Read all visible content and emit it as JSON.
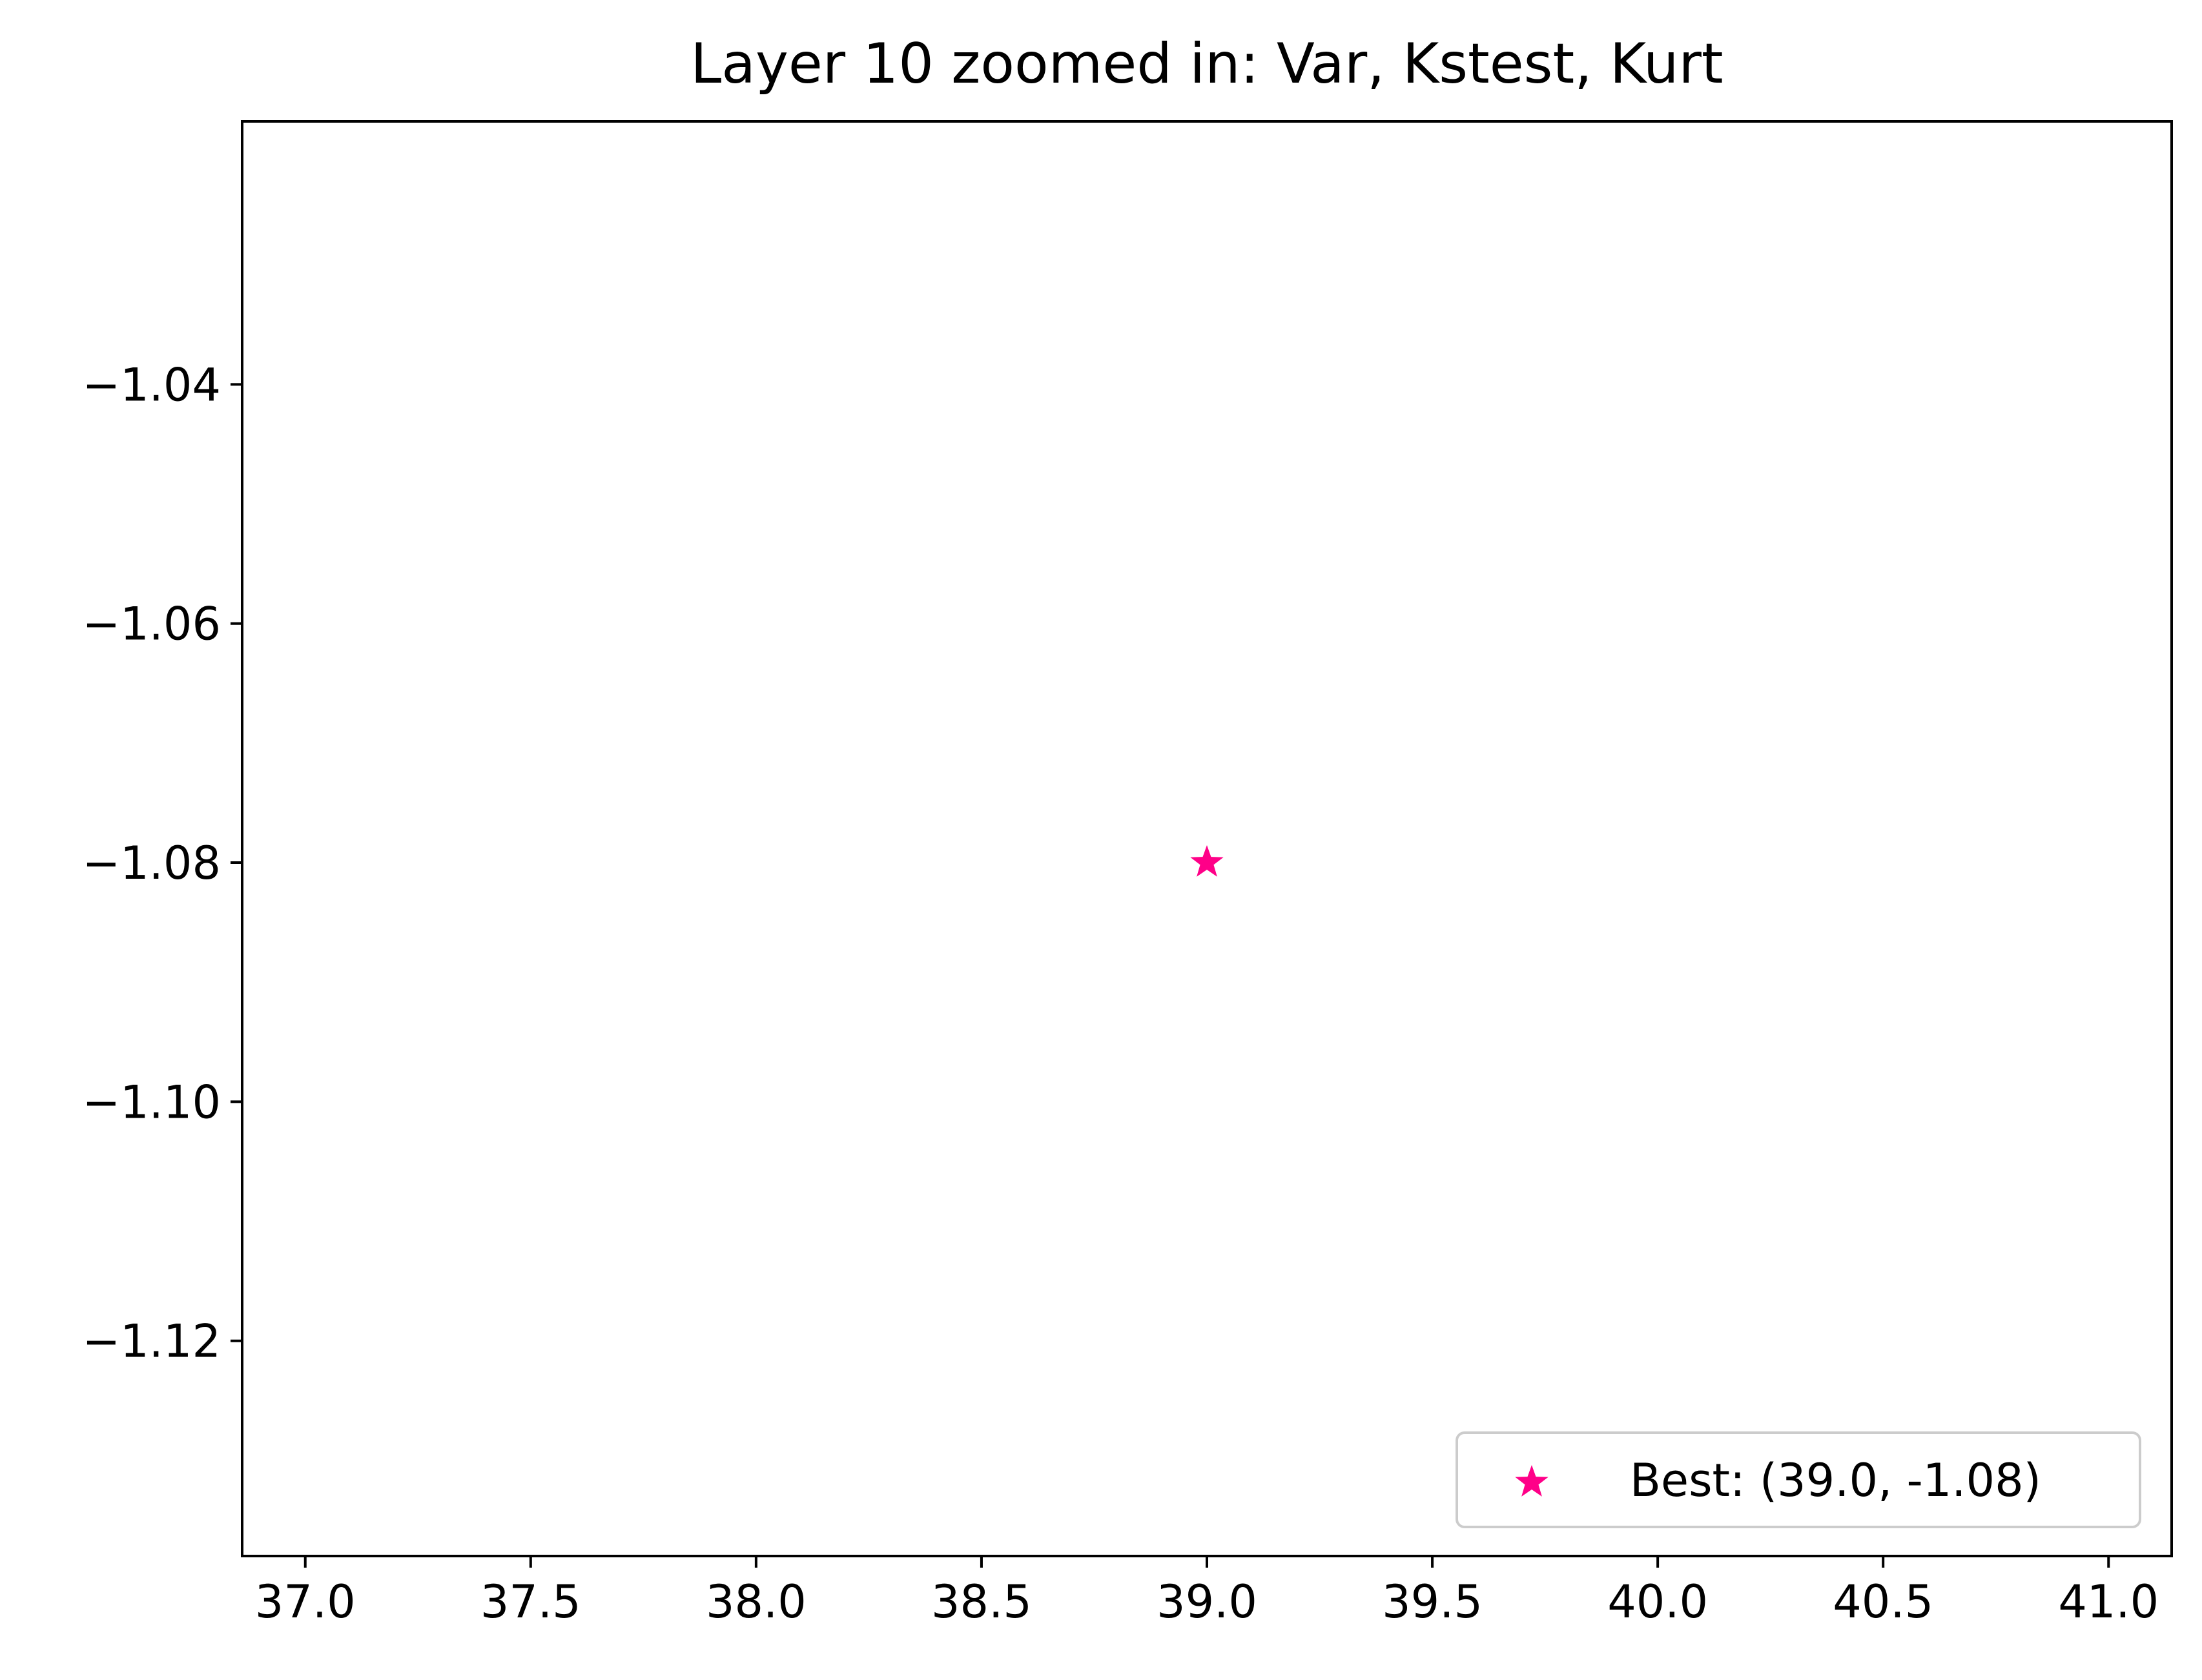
{
  "chart_data": {
    "type": "scatter",
    "title": "Layer 10 zoomed in: Var, Kstest, Kurt",
    "xlabel": "",
    "ylabel": "",
    "xlim": [
      36.86,
      41.14
    ],
    "ylim": [
      -1.138,
      -1.018
    ],
    "x_ticks": [
      "37.0",
      "37.5",
      "38.0",
      "38.5",
      "39.0",
      "39.5",
      "40.0",
      "40.5",
      "41.0"
    ],
    "x_tick_values": [
      37.0,
      37.5,
      38.0,
      38.5,
      39.0,
      39.5,
      40.0,
      40.5,
      41.0
    ],
    "y_ticks": [
      "−1.04",
      "−1.06",
      "−1.08",
      "−1.10",
      "−1.12"
    ],
    "y_tick_values": [
      -1.04,
      -1.06,
      -1.08,
      -1.1,
      -1.12
    ],
    "grid": false,
    "legend_position": "lower-right",
    "series": [
      {
        "name": "Best: (39.0, -1.08)",
        "marker": "star",
        "color": "#ff0088",
        "points": [
          {
            "x": 39.0,
            "y": -1.08
          }
        ]
      }
    ]
  }
}
